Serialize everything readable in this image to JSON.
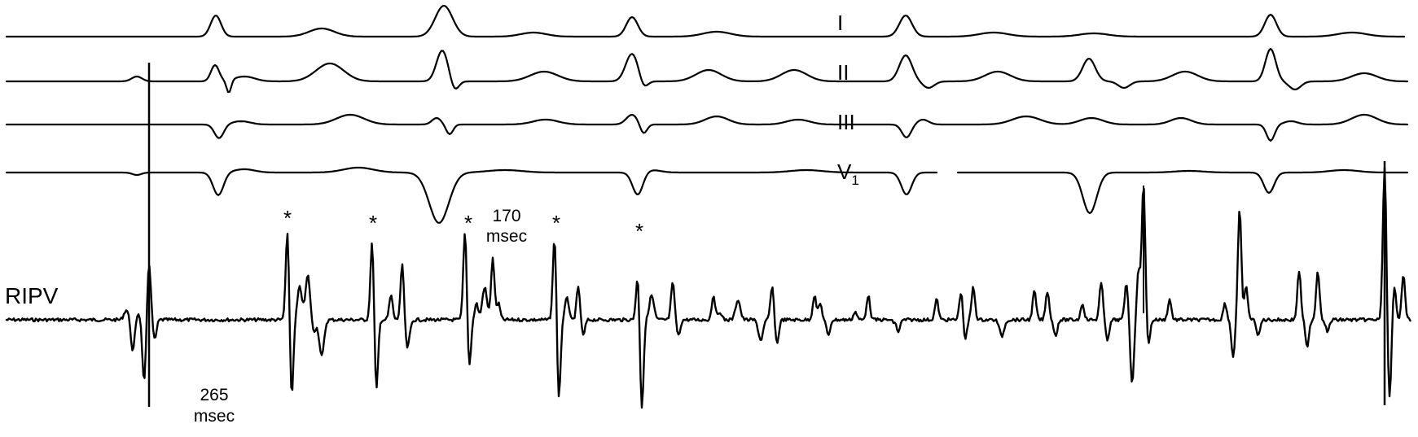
{
  "leads": [
    {
      "id": "I",
      "label": "I"
    },
    {
      "id": "II",
      "label": "II"
    },
    {
      "id": "III",
      "label": "III"
    },
    {
      "id": "V1",
      "label": "V",
      "subscript": "1"
    }
  ],
  "intracardiac_label": "RIPV",
  "annotations": [
    {
      "id": "interval-265",
      "value": "265",
      "unit": "msec"
    },
    {
      "id": "interval-170",
      "value": "170",
      "unit": "msec"
    }
  ],
  "markers": [
    "*",
    "*",
    "*",
    "*",
    "*",
    "*"
  ],
  "colors": {
    "trace": "#000000",
    "background": "#ffffff"
  }
}
